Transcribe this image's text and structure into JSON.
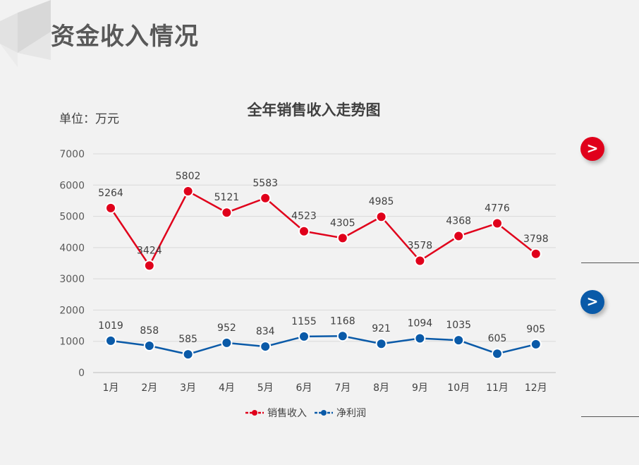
{
  "page": {
    "title": "资金收入情况",
    "unit": "单位：万元"
  },
  "colors": {
    "sales": "#e0001b",
    "profit": "#0a5aa8"
  },
  "side_icons": [
    {
      "name": "chevron-right-icon",
      "color": "#e0001b"
    },
    {
      "name": "chevron-right-icon",
      "color": "#0a5aa8"
    }
  ],
  "chart_data": {
    "type": "line",
    "title": "全年销售收入走势图",
    "categories": [
      "1月",
      "2月",
      "3月",
      "4月",
      "5月",
      "6月",
      "7月",
      "8月",
      "9月",
      "10月",
      "11月",
      "12月"
    ],
    "series": [
      {
        "name": "销售收入",
        "color": "#e0001b",
        "values": [
          5264,
          3424,
          5802,
          5121,
          5583,
          4523,
          4305,
          4985,
          3578,
          4368,
          4776,
          3798
        ]
      },
      {
        "name": "净利润",
        "color": "#0a5aa8",
        "values": [
          1019,
          858,
          585,
          952,
          834,
          1155,
          1168,
          921,
          1094,
          1035,
          605,
          905
        ]
      }
    ],
    "ylim": [
      0,
      7000
    ],
    "yticks": [
      0,
      1000,
      2000,
      3000,
      4000,
      5000,
      6000,
      7000
    ],
    "grid": true,
    "legend": "bottom"
  }
}
